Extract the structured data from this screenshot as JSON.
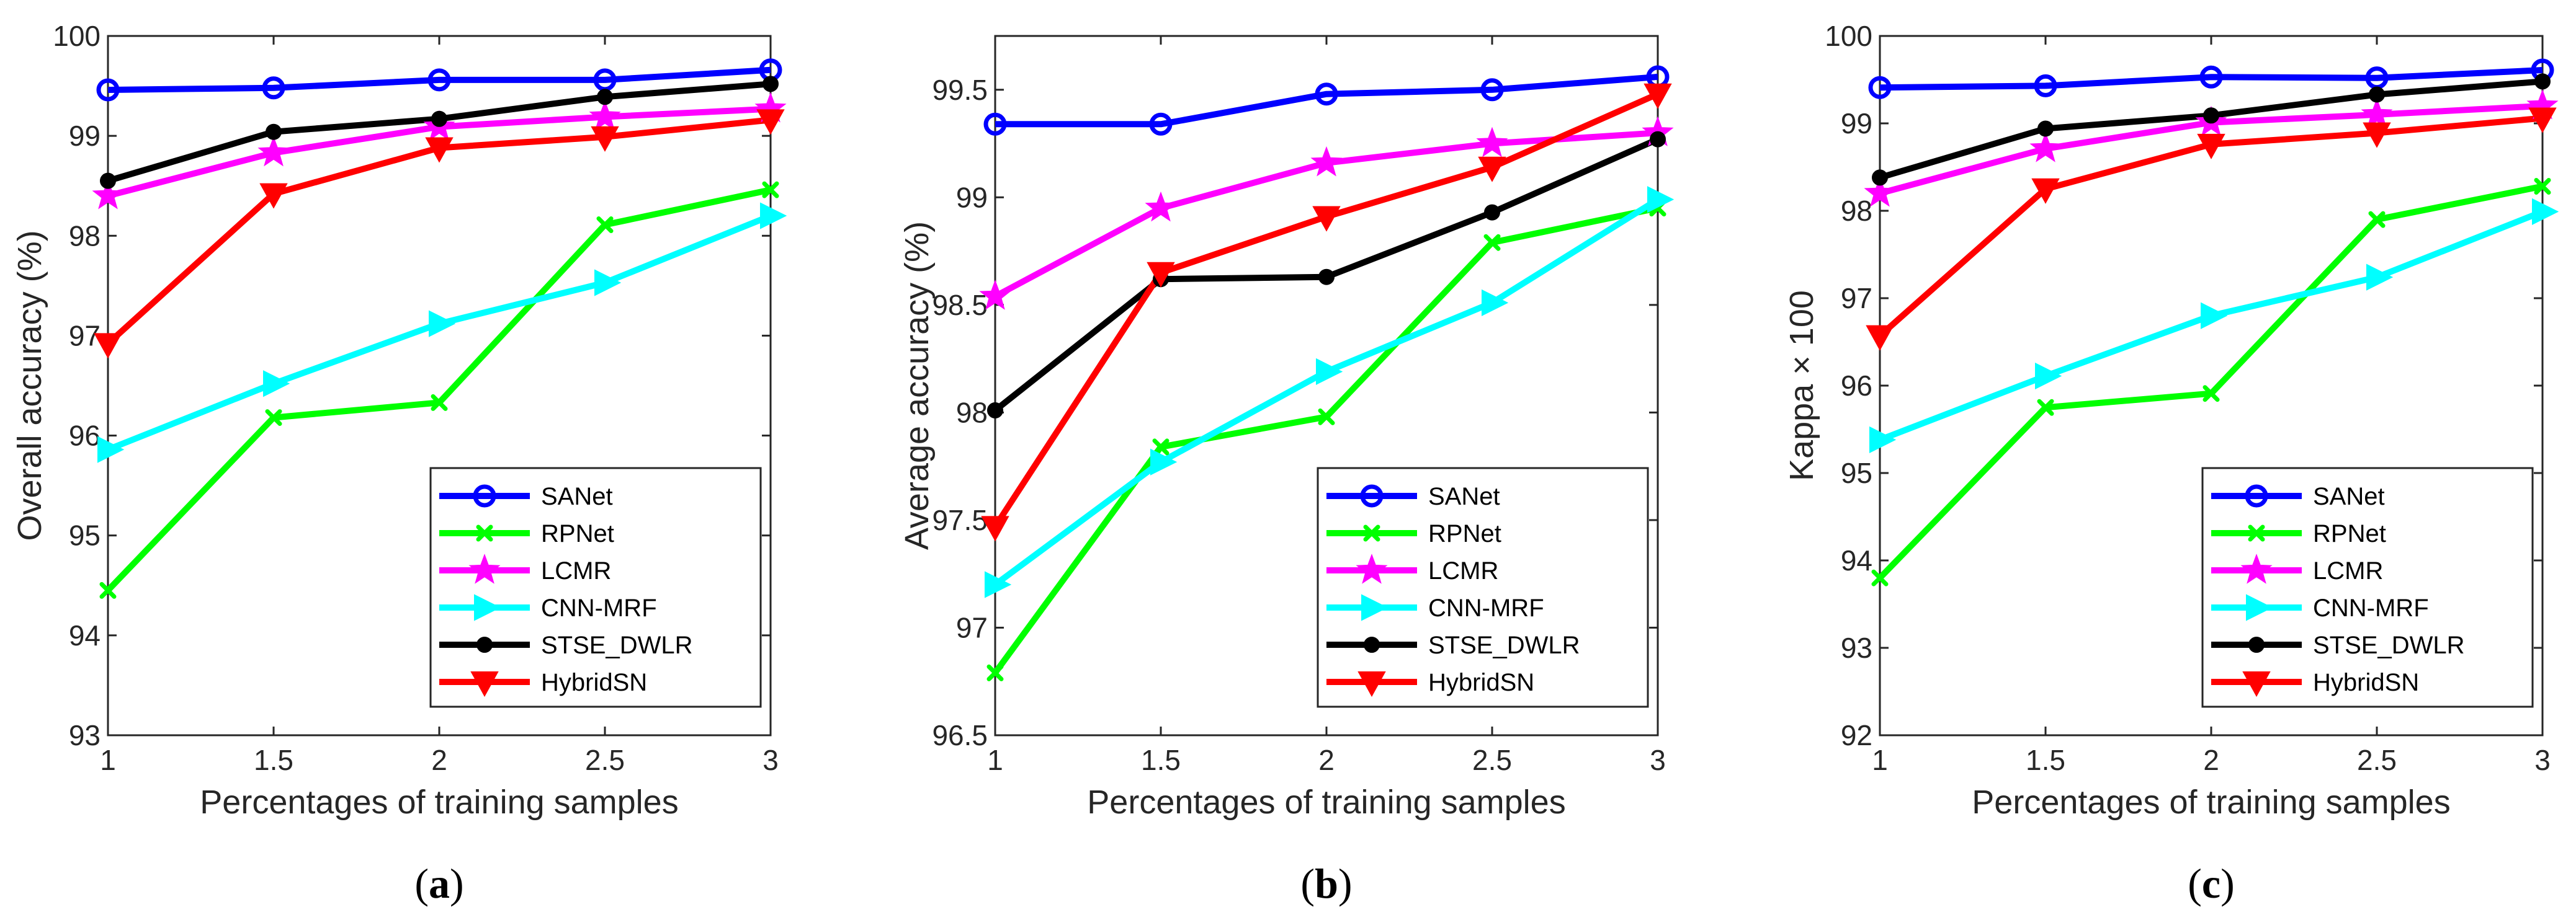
{
  "chart_data": [
    {
      "type": "line",
      "panel_caption": "(a)",
      "xlabel": "Percentages of training samples",
      "ylabel": "Overall accuracy (%)",
      "x": [
        1,
        1.5,
        2,
        2.5,
        3
      ],
      "xticks": [
        "1",
        "1.5",
        "2",
        "2.5",
        "3"
      ],
      "ylim": [
        93,
        100
      ],
      "yticks": [
        "93",
        "94",
        "95",
        "96",
        "97",
        "98",
        "99",
        "100"
      ],
      "legend_position": "bottom-right",
      "series": [
        {
          "name": "SANet",
          "color": "#0000ff",
          "marker": "circle",
          "values": [
            99.46,
            99.48,
            99.56,
            99.56,
            99.66
          ]
        },
        {
          "name": "RPNet",
          "color": "#00ff00",
          "marker": "x",
          "values": [
            94.45,
            96.18,
            96.33,
            98.11,
            98.46
          ]
        },
        {
          "name": "LCMR",
          "color": "#ff00ff",
          "marker": "star",
          "values": [
            98.4,
            98.83,
            99.09,
            99.19,
            99.27
          ]
        },
        {
          "name": "CNN-MRF",
          "color": "#00ffff",
          "marker": "triangle-right",
          "values": [
            95.86,
            96.52,
            97.12,
            97.53,
            98.2
          ]
        },
        {
          "name": "STSE_DWLR",
          "color": "#000000",
          "marker": "dot",
          "values": [
            98.55,
            99.04,
            99.17,
            99.39,
            99.52
          ]
        },
        {
          "name": "HybridSN",
          "color": "#ff0000",
          "marker": "triangle-down",
          "values": [
            96.92,
            98.42,
            98.88,
            98.99,
            99.16
          ]
        }
      ]
    },
    {
      "type": "line",
      "panel_caption": "(b)",
      "xlabel": "Percentages of training samples",
      "ylabel": "Average accuracy (%)",
      "x": [
        1,
        1.5,
        2,
        2.5,
        3
      ],
      "xticks": [
        "1",
        "1.5",
        "2",
        "2.5",
        "3"
      ],
      "ylim": [
        96.5,
        99.75
      ],
      "yticks": [
        "96.5",
        "97",
        "97.5",
        "98",
        "98.5",
        "99",
        "99.5"
      ],
      "legend_position": "bottom-right",
      "series": [
        {
          "name": "SANet",
          "color": "#0000ff",
          "marker": "circle",
          "values": [
            99.34,
            99.34,
            99.48,
            99.5,
            99.56
          ]
        },
        {
          "name": "RPNet",
          "color": "#00ff00",
          "marker": "x",
          "values": [
            96.79,
            97.84,
            97.98,
            98.79,
            98.95
          ]
        },
        {
          "name": "LCMR",
          "color": "#ff00ff",
          "marker": "star",
          "values": [
            98.54,
            98.95,
            99.16,
            99.25,
            99.3
          ]
        },
        {
          "name": "CNN-MRF",
          "color": "#00ffff",
          "marker": "triangle-right",
          "values": [
            97.2,
            97.77,
            98.19,
            98.51,
            98.99
          ]
        },
        {
          "name": "STSE_DWLR",
          "color": "#000000",
          "marker": "dot",
          "values": [
            98.01,
            98.62,
            98.63,
            98.93,
            99.27
          ]
        },
        {
          "name": "HybridSN",
          "color": "#ff0000",
          "marker": "triangle-down",
          "values": [
            97.47,
            98.65,
            98.91,
            99.14,
            99.48
          ]
        }
      ]
    },
    {
      "type": "line",
      "panel_caption": "(c)",
      "xlabel": "Percentages of training samples",
      "ylabel": "Kappa × 100",
      "x": [
        1,
        1.5,
        2,
        2.5,
        3
      ],
      "xticks": [
        "1",
        "1.5",
        "2",
        "2.5",
        "3"
      ],
      "ylim": [
        92,
        100
      ],
      "yticks": [
        "92",
        "93",
        "94",
        "95",
        "96",
        "97",
        "98",
        "99",
        "100"
      ],
      "legend_position": "bottom-right",
      "series": [
        {
          "name": "SANet",
          "color": "#0000ff",
          "marker": "circle",
          "values": [
            99.41,
            99.43,
            99.53,
            99.52,
            99.61
          ]
        },
        {
          "name": "RPNet",
          "color": "#00ff00",
          "marker": "x",
          "values": [
            93.8,
            95.75,
            95.91,
            97.9,
            98.28
          ]
        },
        {
          "name": "LCMR",
          "color": "#ff00ff",
          "marker": "star",
          "values": [
            98.2,
            98.71,
            99.01,
            99.1,
            99.2
          ]
        },
        {
          "name": "CNN-MRF",
          "color": "#00ffff",
          "marker": "triangle-right",
          "values": [
            95.38,
            96.11,
            96.8,
            97.24,
            97.99
          ]
        },
        {
          "name": "STSE_DWLR",
          "color": "#000000",
          "marker": "dot",
          "values": [
            98.38,
            98.94,
            99.09,
            99.33,
            99.48
          ]
        },
        {
          "name": "HybridSN",
          "color": "#ff0000",
          "marker": "triangle-down",
          "values": [
            96.57,
            98.25,
            98.76,
            98.89,
            99.06
          ]
        }
      ]
    }
  ]
}
